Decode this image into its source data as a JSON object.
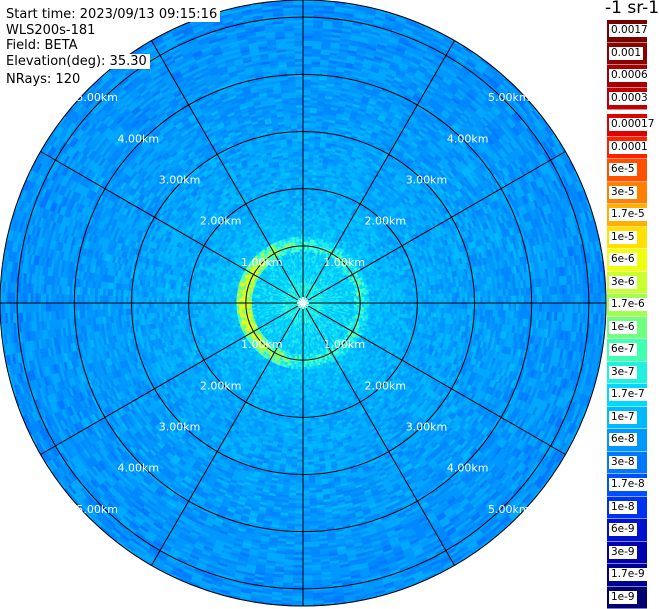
{
  "info": {
    "start_time": "Start time: 2023/09/13 09:15:16",
    "instrument": "WLS200s-181",
    "field": "Field: BETA",
    "elevation": "Elevation(deg): 35.30",
    "nrays": "NRays: 120"
  },
  "units_label": "-1 sr-1",
  "chart_data": {
    "type": "heatmap",
    "projection": "polar (PPI scan)",
    "field": "BETA",
    "range_rings_km": [
      1,
      2,
      3,
      4,
      5
    ],
    "ring_labels": [
      "1.00km",
      "2.00km",
      "3.00km",
      "4.00km",
      "5.00km"
    ],
    "max_range_km": 5.3,
    "n_rays": 120,
    "radial_lines_deg": [
      0,
      30,
      60,
      90,
      120,
      150,
      180,
      210,
      240,
      270,
      300,
      330
    ],
    "approx_values": [
      {
        "range_km": [
          0,
          0.5
        ],
        "value": "3e-7"
      },
      {
        "range_km": [
          0.5,
          1.2
        ],
        "value": "1.7e-7 to 1e-6",
        "peak": "1.7e-6 near 1.0km west side"
      },
      {
        "range_km": [
          1.2,
          2.5
        ],
        "value": "6e-8 to 1e-7"
      },
      {
        "range_km": [
          2.5,
          5.3
        ],
        "value": "1e-8 to 6e-8"
      }
    ]
  },
  "colorbar": {
    "top_group": [
      {
        "label": "0.0017",
        "color": "#7a0000"
      },
      {
        "label": "0.001",
        "color": "#8c0000"
      },
      {
        "label": "0.0006",
        "color": "#a30000"
      },
      {
        "label": "0.0003",
        "color": "#c00000"
      }
    ],
    "main_group": [
      {
        "label": "0.00017",
        "color": "#e00000"
      },
      {
        "label": "0.0001",
        "color": "#ff2000"
      },
      {
        "label": "6e-5",
        "color": "#ff5000"
      },
      {
        "label": "3e-5",
        "color": "#ff8000"
      },
      {
        "label": "1.7e-5",
        "color": "#ffb000"
      },
      {
        "label": "1e-5",
        "color": "#ffe000"
      },
      {
        "label": "6e-6",
        "color": "#f0ff10"
      },
      {
        "label": "3e-6",
        "color": "#c8ff30"
      },
      {
        "label": "1.7e-6",
        "color": "#a0ff50"
      },
      {
        "label": "1e-6",
        "color": "#70ff80"
      },
      {
        "label": "6e-7",
        "color": "#40ffb0"
      },
      {
        "label": "3e-7",
        "color": "#20f0e0"
      },
      {
        "label": "1.7e-7",
        "color": "#00d8ff"
      },
      {
        "label": "1e-7",
        "color": "#00b8ff"
      },
      {
        "label": "6e-8",
        "color": "#0098ff"
      },
      {
        "label": "3e-8",
        "color": "#0078ff"
      },
      {
        "label": "1.7e-8",
        "color": "#0050ff"
      },
      {
        "label": "1e-8",
        "color": "#0030f0"
      },
      {
        "label": "6e-9",
        "color": "#0010d0"
      },
      {
        "label": "3e-9",
        "color": "#0000b0"
      },
      {
        "label": "1.7e-9",
        "color": "#000090"
      },
      {
        "label": "1e-9",
        "color": "#000070"
      }
    ]
  }
}
